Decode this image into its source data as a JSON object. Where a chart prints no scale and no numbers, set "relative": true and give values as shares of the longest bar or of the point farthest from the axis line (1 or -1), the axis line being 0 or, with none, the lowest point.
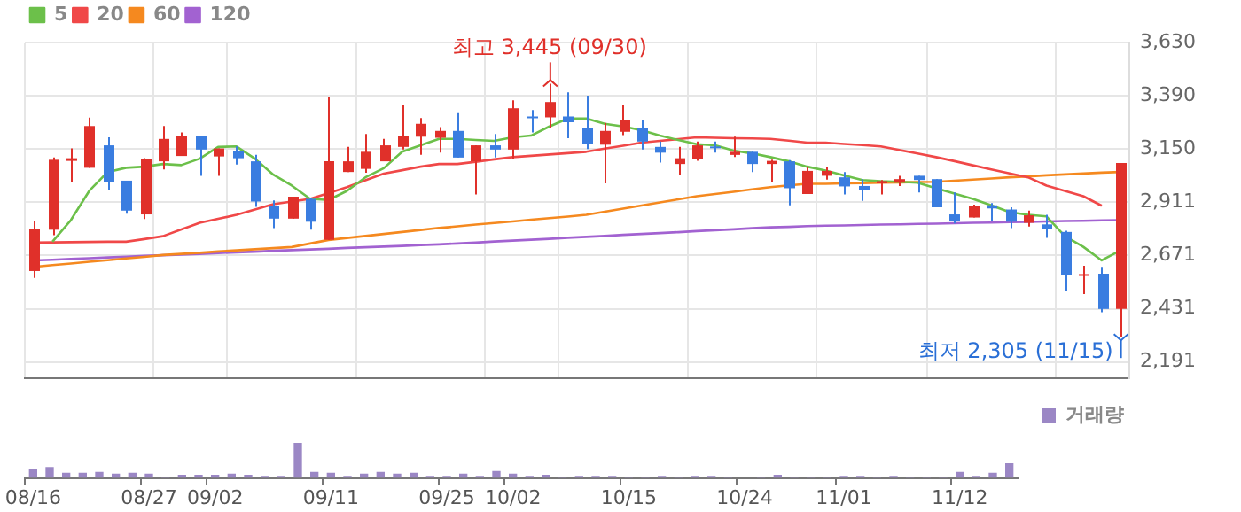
{
  "chart_data": [
    {
      "type": "candlestick",
      "categories": [
        null,
        null,
        null,
        null,
        null,
        null,
        null,
        null,
        null,
        null,
        null,
        null,
        null,
        null,
        null,
        null,
        null,
        null,
        null,
        null,
        null,
        null,
        null,
        null,
        null,
        null,
        null,
        null,
        null,
        null,
        null,
        null,
        null,
        null,
        null,
        null,
        null,
        null,
        null,
        null,
        null,
        null,
        null,
        null,
        null,
        null,
        null,
        null,
        null,
        null,
        null,
        null,
        null,
        null,
        null,
        null,
        null,
        null,
        null,
        null
      ],
      "ohlc": [
        [
          2601,
          2827,
          2570,
          2789
        ],
        [
          2787,
          3112,
          2762,
          3102
        ],
        [
          3097,
          3153,
          3003,
          3109
        ],
        [
          3066,
          3292,
          3066,
          3254
        ],
        [
          3167,
          3203,
          2967,
          3003
        ],
        [
          3008,
          3008,
          2859,
          2873
        ],
        [
          2856,
          3109,
          2835,
          3105
        ],
        [
          3095,
          3254,
          3059,
          3196
        ],
        [
          3119,
          3225,
          3119,
          3211
        ],
        [
          3211,
          3211,
          3030,
          3148
        ],
        [
          3117,
          3153,
          3030,
          3153
        ],
        [
          3141,
          3162,
          3081,
          3109
        ],
        [
          3095,
          3124,
          2890,
          2914
        ],
        [
          2893,
          2919,
          2794,
          2837
        ],
        [
          2837,
          2936,
          2837,
          2936
        ],
        [
          2926,
          2931,
          2787,
          2823
        ],
        [
          2741,
          3384,
          2741,
          3095
        ],
        [
          3047,
          3160,
          3047,
          3095
        ],
        [
          3061,
          3218,
          3044,
          3138
        ],
        [
          3095,
          3196,
          3095,
          3167
        ],
        [
          3160,
          3348,
          3148,
          3211
        ],
        [
          3206,
          3290,
          3124,
          3264
        ],
        [
          3201,
          3249,
          3134,
          3232
        ],
        [
          3232,
          3312,
          3112,
          3112
        ],
        [
          3095,
          3167,
          2946,
          3167
        ],
        [
          3167,
          3218,
          3112,
          3148
        ],
        [
          3148,
          3370,
          3107,
          3334
        ],
        [
          3297,
          3326,
          3225,
          3293
        ],
        [
          3293,
          3445,
          3247,
          3362
        ],
        [
          3297,
          3406,
          3199,
          3271
        ],
        [
          3247,
          3391,
          3150,
          3175
        ],
        [
          3170,
          3268,
          2996,
          3232
        ],
        [
          3228,
          3348,
          3213,
          3283
        ],
        [
          3244,
          3283,
          3148,
          3184
        ],
        [
          3160,
          3184,
          3090,
          3134
        ],
        [
          3083,
          3160,
          3032,
          3109
        ],
        [
          3105,
          3184,
          3097,
          3167
        ],
        [
          3162,
          3184,
          3134,
          3158
        ],
        [
          3124,
          3206,
          3114,
          3138
        ],
        [
          3138,
          3138,
          3047,
          3083
        ],
        [
          3083,
          3102,
          3003,
          3097
        ],
        [
          3095,
          3100,
          2897,
          2974
        ],
        [
          2948,
          3071,
          2948,
          3052
        ],
        [
          3030,
          3071,
          3013,
          3052
        ],
        [
          3023,
          3047,
          2946,
          2982
        ],
        [
          2984,
          3015,
          2917,
          2967
        ],
        [
          2996,
          3011,
          2946,
          3006
        ],
        [
          2999,
          3030,
          2984,
          3015
        ],
        [
          3030,
          3030,
          2955,
          3011
        ],
        [
          3015,
          3015,
          2888,
          2888
        ],
        [
          2856,
          2955,
          2815,
          2825
        ],
        [
          2842,
          2900,
          2842,
          2895
        ],
        [
          2897,
          2907,
          2825,
          2883
        ],
        [
          2878,
          2888,
          2794,
          2823
        ],
        [
          2818,
          2873,
          2801,
          2852
        ],
        [
          2811,
          2854,
          2750,
          2791
        ],
        [
          2777,
          2782,
          2509,
          2582
        ],
        [
          2582,
          2625,
          2497,
          2587
        ],
        [
          2589,
          2620,
          2415,
          2430
        ],
        [
          2430,
          3088,
          2305,
          3088
        ]
      ],
      "colors": [
        "#e0302a",
        "#e0302a",
        "#e0302a",
        "#e0302a",
        "#3a7de0",
        "#3a7de0",
        "#e0302a",
        "#e0302a",
        "#e0302a",
        "#3a7de0",
        "#e0302a",
        "#3a7de0",
        "#3a7de0",
        "#3a7de0",
        "#e0302a",
        "#3a7de0",
        "#e0302a",
        "#e0302a",
        "#e0302a",
        "#e0302a",
        "#e0302a",
        "#e0302a",
        "#e0302a",
        "#3a7de0",
        "#e0302a",
        "#3a7de0",
        "#e0302a",
        "#3a7de0",
        "#e0302a",
        "#3a7de0",
        "#3a7de0",
        "#e0302a",
        "#e0302a",
        "#3a7de0",
        "#3a7de0",
        "#e0302a",
        "#e0302a",
        "#3a7de0",
        "#e0302a",
        "#3a7de0",
        "#e0302a",
        "#3a7de0",
        "#e0302a",
        "#e0302a",
        "#3a7de0",
        "#3a7de0",
        "#e0302a",
        "#e0302a",
        "#3a7de0",
        "#3a7de0",
        "#3a7de0",
        "#e0302a",
        "#3a7de0",
        "#3a7de0",
        "#e0302a",
        "#3a7de0",
        "#3a7de0",
        "#e0302a",
        "#3a7de0",
        "#e0302a"
      ],
      "series": [
        {
          "name": "5",
          "type": "line",
          "color": "#6cc04a",
          "values": [
            null,
            2733,
            2830,
            2962,
            3047,
            3066,
            3071,
            3083,
            3078,
            3107,
            3160,
            3162,
            3107,
            3035,
            2986,
            2926,
            2921,
            2962,
            3023,
            3064,
            3138,
            3167,
            3196,
            3196,
            3191,
            3187,
            3203,
            3211,
            3252,
            3288,
            3288,
            3264,
            3252,
            3235,
            3211,
            3191,
            3172,
            3167,
            3143,
            3131,
            3114,
            3095,
            3071,
            3054,
            3032,
            3011,
            3006,
            3003,
            2999,
            2974,
            2950,
            2926,
            2897,
            2866,
            2854,
            2847,
            2758,
            2710,
            2649,
            2693
          ]
        },
        {
          "name": "20",
          "type": "line",
          "color": "#f04848",
          "values": [
            2729,
            2730,
            2731,
            2732,
            2733,
            2733,
            2745,
            2758,
            2788,
            2818,
            2836,
            2854,
            2878,
            2902,
            2914,
            2926,
            2952,
            2979,
            3010,
            3040,
            3055,
            3071,
            3083,
            3083,
            3093,
            3104,
            3114,
            3120,
            3126,
            3132,
            3138,
            3152,
            3165,
            3179,
            3187,
            3195,
            3203,
            3201,
            3199,
            3198,
            3196,
            3188,
            3179,
            3179,
            3173,
            3168,
            3162,
            3146,
            3130,
            3114,
            3096,
            3077,
            3059,
            3041,
            3023,
            2986,
            2962,
            2938,
            2895,
            null
          ]
        },
        {
          "name": "60",
          "type": "line",
          "color": "#f5891f",
          "values": [
            2620,
            2628,
            2635,
            2643,
            2650,
            2658,
            2665,
            2673,
            2678,
            2683,
            2689,
            2694,
            2699,
            2704,
            2709,
            2725,
            2741,
            2750,
            2759,
            2768,
            2777,
            2786,
            2795,
            2802,
            2810,
            2817,
            2824,
            2832,
            2839,
            2846,
            2854,
            2868,
            2882,
            2896,
            2910,
            2924,
            2938,
            2948,
            2958,
            2969,
            2979,
            2987,
            2994,
            2994,
            2996,
            2997,
            2999,
            3000,
            3002,
            3003,
            3008,
            3013,
            3018,
            3023,
            3027,
            3032,
            3036,
            3040,
            3044,
            3047
          ]
        },
        {
          "name": "120",
          "type": "line",
          "color": "#a262d1",
          "values": [
            2649,
            2652,
            2656,
            2659,
            2662,
            2665,
            2669,
            2672,
            2675,
            2678,
            2682,
            2685,
            2688,
            2692,
            2695,
            2698,
            2701,
            2705,
            2708,
            2711,
            2714,
            2718,
            2721,
            2725,
            2729,
            2734,
            2738,
            2742,
            2746,
            2751,
            2755,
            2759,
            2764,
            2768,
            2772,
            2776,
            2781,
            2785,
            2789,
            2794,
            2798,
            2800,
            2803,
            2805,
            2806,
            2808,
            2810,
            2811,
            2813,
            2814,
            2816,
            2818,
            2819,
            2821,
            2822,
            2824,
            2826,
            2827,
            2829,
            2830
          ]
        }
      ],
      "ylim": [
        2119,
        3630
      ],
      "yticks": [
        {
          "value": 2191,
          "label": "2,191"
        },
        {
          "value": 2431,
          "label": "2,431"
        },
        {
          "value": 2671,
          "label": "2,671"
        },
        {
          "value": 2911,
          "label": "2,911"
        },
        {
          "value": 3150,
          "label": "3,150"
        },
        {
          "value": 3390,
          "label": "3,390"
        },
        {
          "value": 3630,
          "label": "3,630"
        }
      ],
      "grid": true,
      "legend": "top left",
      "tick_labels": "y",
      "marker": "none",
      "annotations": [
        {
          "text": "최고 3,445 (09/30)",
          "y": 3445
        },
        "최저 2,305 (11/15)"
      ]
    },
    {
      "type": "bar",
      "categories": [
        "08/16",
        null,
        null,
        null,
        null,
        null,
        null,
        "08/27",
        null,
        null,
        null,
        "09/02",
        null,
        null,
        null,
        null,
        null,
        null,
        "09/11",
        null,
        null,
        null,
        null,
        null,
        null,
        "09/25",
        null,
        null,
        null,
        "10/02",
        null,
        null,
        null,
        null,
        null,
        null,
        "10/15",
        null,
        null,
        null,
        null,
        null,
        null,
        "10/24",
        null,
        null,
        null,
        null,
        null,
        "11/01",
        null,
        null,
        null,
        null,
        null,
        null,
        "11/12",
        null,
        null,
        null
      ],
      "series": [
        {
          "name": "거래량",
          "color": "#9b87c5",
          "values": [
            0.26,
            0.31,
            0.15,
            0.15,
            0.17,
            0.12,
            0.15,
            0.12,
            0.04,
            0.09,
            0.09,
            0.09,
            0.12,
            0.09,
            0.06,
            0.06,
            1,
            0.17,
            0.15,
            0.06,
            0.12,
            0.17,
            0.12,
            0.15,
            0.06,
            0.06,
            0.12,
            0.06,
            0.2,
            0.12,
            0.06,
            0.09,
            0.04,
            0.06,
            0.06,
            0.06,
            0.04,
            0.04,
            0.06,
            0.04,
            0.06,
            0.06,
            0.04,
            null,
            0.04,
            0.09,
            0.04,
            0.04,
            0.04,
            0.06,
            0.06,
            0.04,
            0.06,
            0.04,
            0.04,
            0.04,
            0.17,
            0.06,
            0.15,
            0.42
          ]
        }
      ],
      "relative": true,
      "legend": "top right",
      "tick_labels": "x"
    }
  ]
}
